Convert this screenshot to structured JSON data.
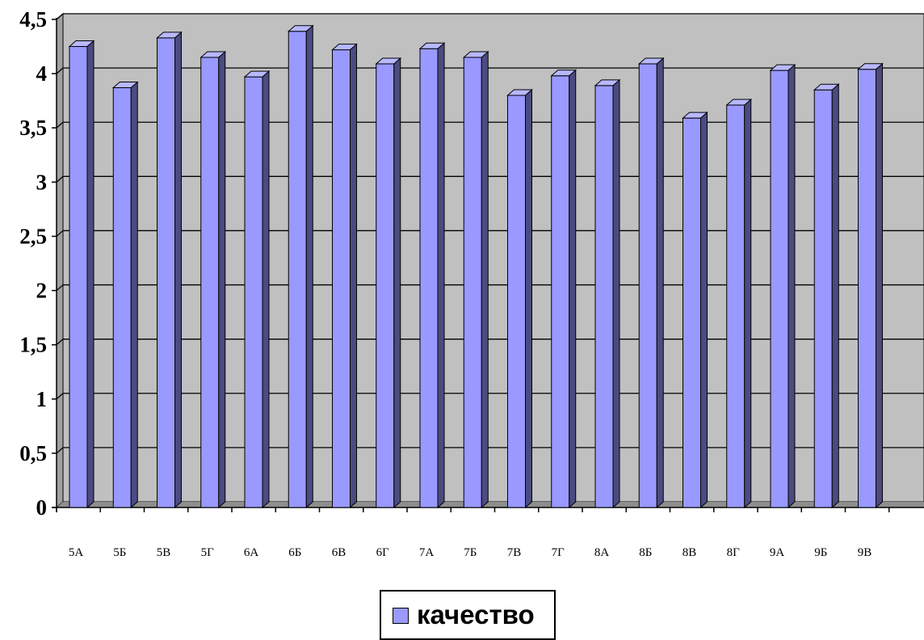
{
  "chart_data": {
    "type": "bar",
    "style": "3d",
    "categories": [
      "5А",
      "5Б",
      "5В",
      "5Г",
      "6А",
      "6Б",
      "6В",
      "6Г",
      "7А",
      "7Б",
      "7В",
      "7Г",
      "8А",
      "8Б",
      "8В",
      "8Г",
      "9А",
      "9Б",
      "9В"
    ],
    "series": [
      {
        "name": "качество",
        "values": [
          4.25,
          3.87,
          4.33,
          4.15,
          3.97,
          4.39,
          4.22,
          4.09,
          4.23,
          4.15,
          3.8,
          3.98,
          3.89,
          4.09,
          3.59,
          3.71,
          4.03,
          3.85,
          4.04
        ]
      }
    ],
    "y_ticks": [
      "0",
      "0,5",
      "1",
      "1,5",
      "2",
      "2,5",
      "3",
      "3,5",
      "4",
      "4,5"
    ],
    "ylim": [
      0,
      4.5
    ],
    "grid": true,
    "legend_position": "bottom",
    "colors": {
      "bar_front": "#9999ff",
      "bar_side": "#4b4b80",
      "bar_top": "#b8b8ff",
      "plot_back": "#c0c0c0",
      "plot_floor": "#8e8e8e",
      "plot_wall": "#a0a0a0",
      "gridline": "#000000"
    }
  }
}
